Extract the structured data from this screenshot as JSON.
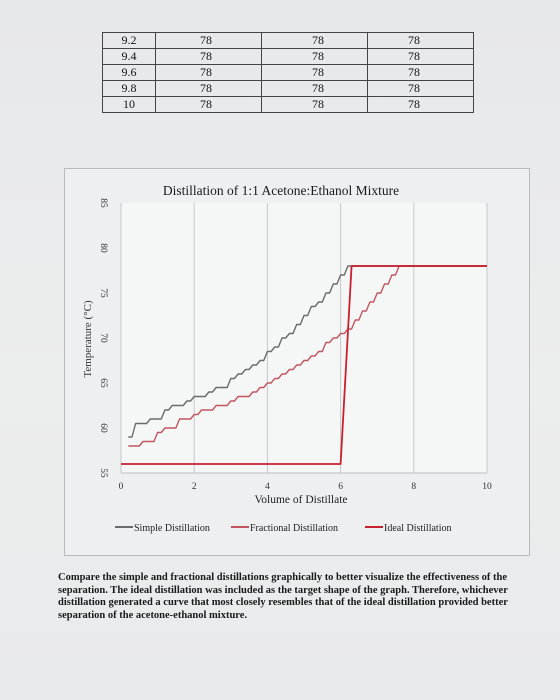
{
  "table": {
    "rows": [
      [
        "9.2",
        "78",
        "78",
        "78"
      ],
      [
        "9.4",
        "78",
        "78",
        "78"
      ],
      [
        "9.6",
        "78",
        "78",
        "78"
      ],
      [
        "9.8",
        "78",
        "78",
        "78"
      ],
      [
        "10",
        "78",
        "78",
        "78"
      ]
    ]
  },
  "chart_data": {
    "type": "line",
    "title": "Distillation of 1:1 Acetone:Ethanol Mixture",
    "xlabel": "Volume of Distillate",
    "ylabel": "Temperature (°C)",
    "xlim": [
      0,
      10
    ],
    "ylim": [
      55,
      85
    ],
    "xticks": [
      "0",
      "2",
      "4",
      "6",
      "8",
      "10"
    ],
    "yticks": [
      "55",
      "60",
      "65",
      "70",
      "75",
      "80",
      "85"
    ],
    "grid": "vertical",
    "legend_position": "bottom",
    "series": [
      {
        "name": "Simple Distillation",
        "color": "#6b6b6b",
        "x": [
          0.2,
          0.4,
          0.6,
          0.8,
          1.0,
          1.2,
          1.4,
          1.6,
          1.8,
          2.0,
          2.2,
          2.4,
          2.6,
          2.8,
          3.0,
          3.2,
          3.4,
          3.6,
          3.8,
          4.0,
          4.2,
          4.4,
          4.6,
          4.8,
          5.0,
          5.2,
          5.4,
          5.6,
          5.8,
          6.0,
          6.2,
          6.4,
          6.6,
          6.8,
          7.0,
          7.2,
          7.4,
          7.6,
          7.8,
          8.0,
          8.2,
          8.4,
          8.6,
          8.8,
          9.0,
          9.2,
          9.4,
          9.6,
          9.8,
          10.0
        ],
        "values": [
          59.0,
          60.5,
          60.5,
          61.0,
          61.0,
          62.0,
          62.5,
          62.5,
          63.0,
          63.5,
          63.5,
          64.0,
          64.5,
          64.5,
          65.5,
          66.0,
          66.5,
          67.0,
          67.5,
          68.5,
          69.0,
          70.0,
          70.5,
          71.5,
          72.5,
          73.5,
          74.0,
          75.0,
          76.0,
          77.0,
          78.0,
          78.0,
          78.0,
          78.0,
          78.0,
          78.0,
          78.0,
          78.0,
          78.0,
          78.0,
          78.0,
          78.0,
          78.0,
          78.0,
          78.0,
          78.0,
          78.0,
          78.0,
          78.0,
          78.0
        ]
      },
      {
        "name": "Fractional Distillation",
        "color": "#c25660",
        "x": [
          0.2,
          0.4,
          0.6,
          0.8,
          1.0,
          1.2,
          1.4,
          1.6,
          1.8,
          2.0,
          2.2,
          2.4,
          2.6,
          2.8,
          3.0,
          3.2,
          3.4,
          3.6,
          3.8,
          4.0,
          4.2,
          4.4,
          4.6,
          4.8,
          5.0,
          5.2,
          5.4,
          5.6,
          5.8,
          6.0,
          6.2,
          6.4,
          6.6,
          6.8,
          7.0,
          7.2,
          7.4,
          7.6,
          7.8,
          8.0,
          8.2,
          8.4,
          8.6,
          8.8,
          9.0,
          9.2,
          9.4,
          9.6,
          9.8,
          10.0
        ],
        "values": [
          58.0,
          58.0,
          58.5,
          58.5,
          59.5,
          60.0,
          60.0,
          61.0,
          61.0,
          61.5,
          62.0,
          62.0,
          62.5,
          62.5,
          63.0,
          63.5,
          63.5,
          64.0,
          64.5,
          65.0,
          65.5,
          66.0,
          66.5,
          67.0,
          67.5,
          68.0,
          68.5,
          69.5,
          70.0,
          70.5,
          71.0,
          72.0,
          73.0,
          74.0,
          75.0,
          76.0,
          77.0,
          78.0,
          78.0,
          78.0,
          78.0,
          78.0,
          78.0,
          78.0,
          78.0,
          78.0,
          78.0,
          78.0,
          78.0,
          78.0
        ]
      },
      {
        "name": "Ideal Distillation",
        "color": "#c8202f",
        "x": [
          0.0,
          6.0,
          6.0,
          6.3,
          10.0
        ],
        "values": [
          56.0,
          56.0,
          56.0,
          78.0,
          78.0
        ]
      }
    ]
  },
  "prompt_text": "Compare the simple and fractional distillations graphically to better visualize the effectiveness of the separation. The ideal distillation was included as the target shape of the graph. Therefore, whichever distillation generated a curve that most closely resembles that of the ideal distillation provided better separation of the acetone-ethanol mixture."
}
